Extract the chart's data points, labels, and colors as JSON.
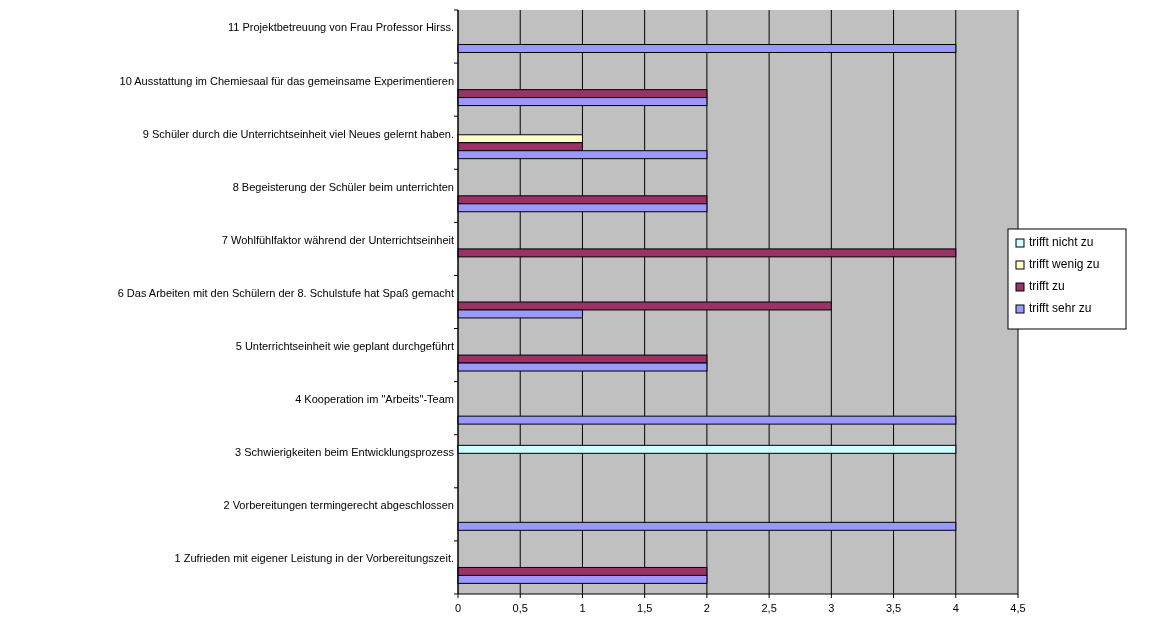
{
  "chart_data": {
    "type": "bar",
    "orientation": "horizontal",
    "categories": [
      "11 Projektbetreuung von Frau Professor Hirss.",
      "10 Ausstattung im Chemiesaal für das gemeinsame Experimentieren",
      "9 Schüler durch die Unterrichtseinheit viel Neues gelernt haben.",
      "8 Begeisterung der Schüler beim unterrichten",
      "7 Wohlfühlfaktor während der Unterrichtseinheit",
      "6 Das Arbeiten mit den Schülern der 8. Schulstufe hat Spaß gemacht",
      "5 Unterrichtseinheit wie geplant durchgeführt",
      "4 Kooperation im \"Arbeits\"-Team",
      "3 Schwierigkeiten beim Entwicklungsprozess",
      "2 Vorbereitungen termingerecht abgeschlossen",
      "1 Zufrieden mit eigener Leistung in der Vorbereitungszeit."
    ],
    "series": [
      {
        "name": "trifft nicht zu",
        "color": "#ccffff",
        "values": [
          null,
          null,
          null,
          null,
          null,
          null,
          null,
          null,
          4,
          null,
          null
        ]
      },
      {
        "name": "trifft wenig zu",
        "color": "#ffffcc",
        "values": [
          null,
          null,
          1,
          null,
          null,
          null,
          null,
          null,
          null,
          null,
          null
        ]
      },
      {
        "name": "trifft zu",
        "color": "#993366",
        "values": [
          null,
          2,
          1,
          2,
          4,
          3,
          2,
          null,
          null,
          null,
          2
        ]
      },
      {
        "name": "trifft sehr zu",
        "color": "#9999ff",
        "values": [
          4,
          2,
          2,
          2,
          null,
          1,
          2,
          4,
          null,
          4,
          2
        ]
      }
    ],
    "xlim": [
      0,
      4.5
    ],
    "xticks": [
      0,
      {
        "value": 0.5,
        "label": "0,5"
      },
      1,
      {
        "value": 1.5,
        "label": "1,5"
      },
      2,
      {
        "value": 2.5,
        "label": "2,5"
      },
      3,
      {
        "value": 3.5,
        "label": "3,5"
      },
      4,
      {
        "value": 4.5,
        "label": "4,5"
      }
    ],
    "grid": "x",
    "legend": "right"
  }
}
